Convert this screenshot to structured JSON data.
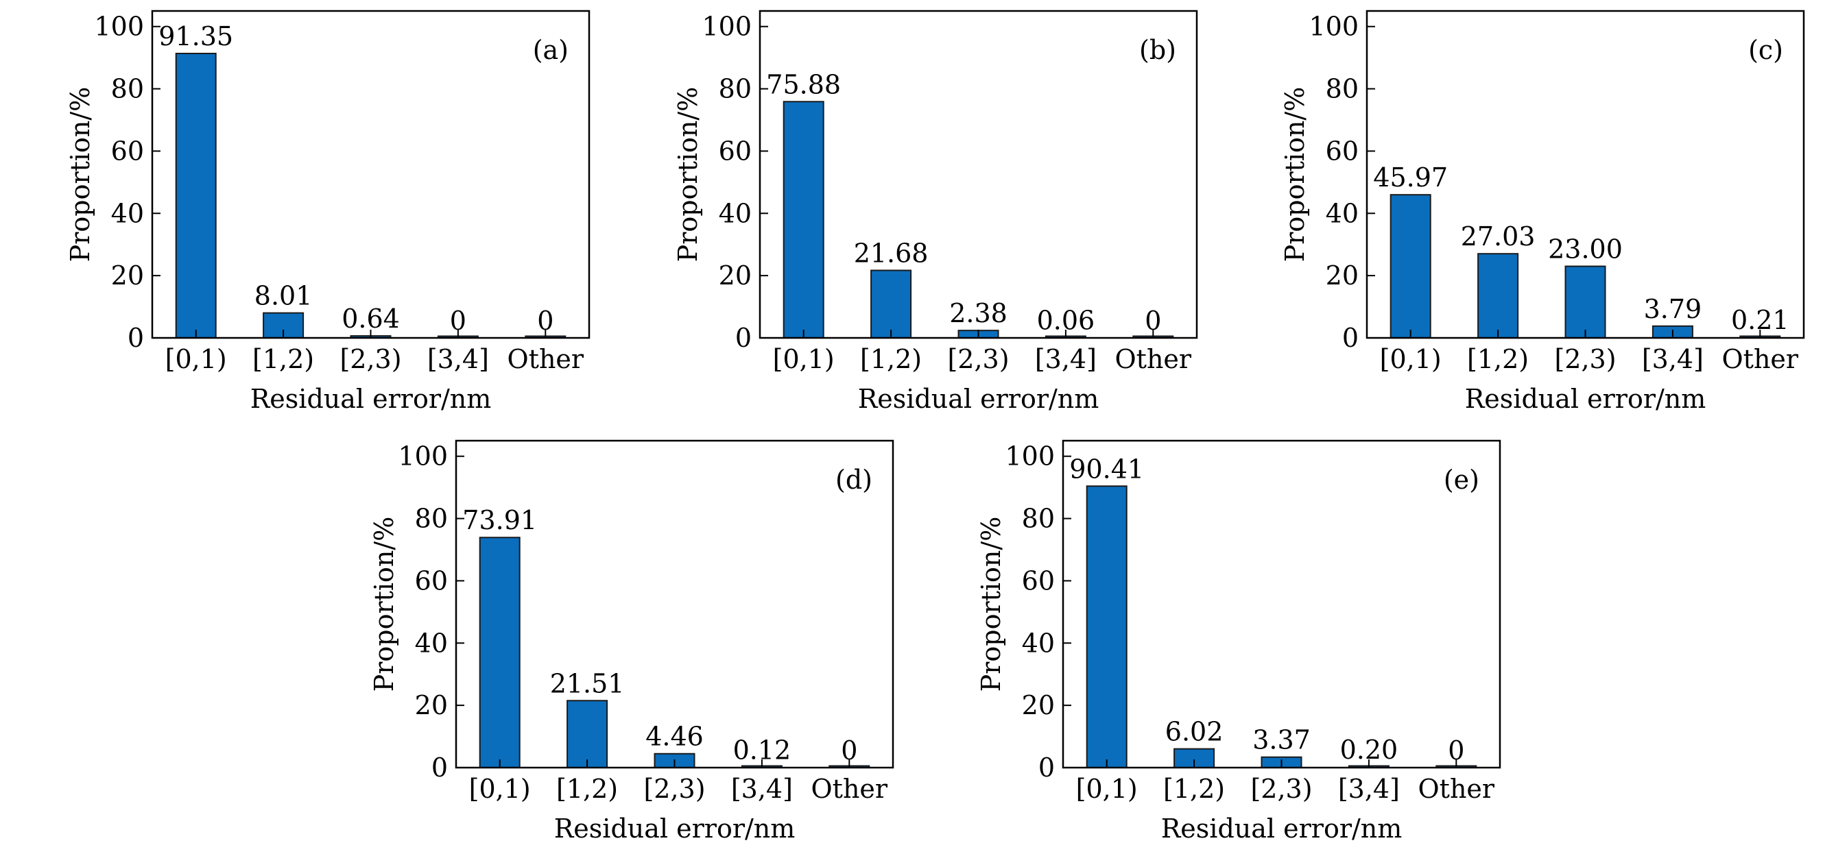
{
  "colors": {
    "bar": "#0a6ebd",
    "bar_stroke": "#1a1a1a",
    "axis": "#000000"
  },
  "chart_data": [
    {
      "type": "bar",
      "panel": "(a)",
      "categories": [
        "[0,1)",
        "[1,2)",
        "[2,3)",
        "[3,4]",
        "Other"
      ],
      "values": [
        91.35,
        8.01,
        0.64,
        0,
        0
      ],
      "labels": [
        "91.35",
        "8.01",
        "0.64",
        "0",
        "0"
      ],
      "xlabel": "Residual error/nm",
      "ylabel": "Proportion/%",
      "ylim": [
        0,
        105
      ],
      "yticks": [
        "0",
        "20",
        "40",
        "60",
        "80",
        "100"
      ],
      "grid": false
    },
    {
      "type": "bar",
      "panel": "(b)",
      "categories": [
        "[0,1)",
        "[1,2)",
        "[2,3)",
        "[3,4]",
        "Other"
      ],
      "values": [
        75.88,
        21.68,
        2.38,
        0.06,
        0
      ],
      "labels": [
        "75.88",
        "21.68",
        "2.38",
        "0.06",
        "0"
      ],
      "xlabel": "Residual error/nm",
      "ylabel": "Proportion/%",
      "ylim": [
        0,
        105
      ],
      "yticks": [
        "0",
        "20",
        "40",
        "60",
        "80",
        "100"
      ],
      "grid": false
    },
    {
      "type": "bar",
      "panel": "(c)",
      "categories": [
        "[0,1)",
        "[1,2)",
        "[2,3)",
        "[3,4]",
        "Other"
      ],
      "values": [
        45.97,
        27.03,
        23.0,
        3.79,
        0.21
      ],
      "labels": [
        "45.97",
        "27.03",
        "23.00",
        "3.79",
        "0.21"
      ],
      "xlabel": "Residual error/nm",
      "ylabel": "Proportion/%",
      "ylim": [
        0,
        105
      ],
      "yticks": [
        "0",
        "20",
        "40",
        "60",
        "80",
        "100"
      ],
      "grid": false
    },
    {
      "type": "bar",
      "panel": "(d)",
      "categories": [
        "[0,1)",
        "[1,2)",
        "[2,3)",
        "[3,4]",
        "Other"
      ],
      "values": [
        73.91,
        21.51,
        4.46,
        0.12,
        0
      ],
      "labels": [
        "73.91",
        "21.51",
        "4.46",
        "0.12",
        "0"
      ],
      "xlabel": "Residual error/nm",
      "ylabel": "Proportion/%",
      "ylim": [
        0,
        105
      ],
      "yticks": [
        "0",
        "20",
        "40",
        "60",
        "80",
        "100"
      ],
      "grid": false
    },
    {
      "type": "bar",
      "panel": "(e)",
      "categories": [
        "[0,1)",
        "[1,2)",
        "[2,3)",
        "[3,4]",
        "Other"
      ],
      "values": [
        90.41,
        6.02,
        3.37,
        0.2,
        0
      ],
      "labels": [
        "90.41",
        "6.02",
        "3.37",
        "0.20",
        "0"
      ],
      "xlabel": "Residual error/nm",
      "ylabel": "Proportion/%",
      "ylim": [
        0,
        105
      ],
      "yticks": [
        "0",
        "20",
        "40",
        "60",
        "80",
        "100"
      ],
      "grid": false
    }
  ]
}
